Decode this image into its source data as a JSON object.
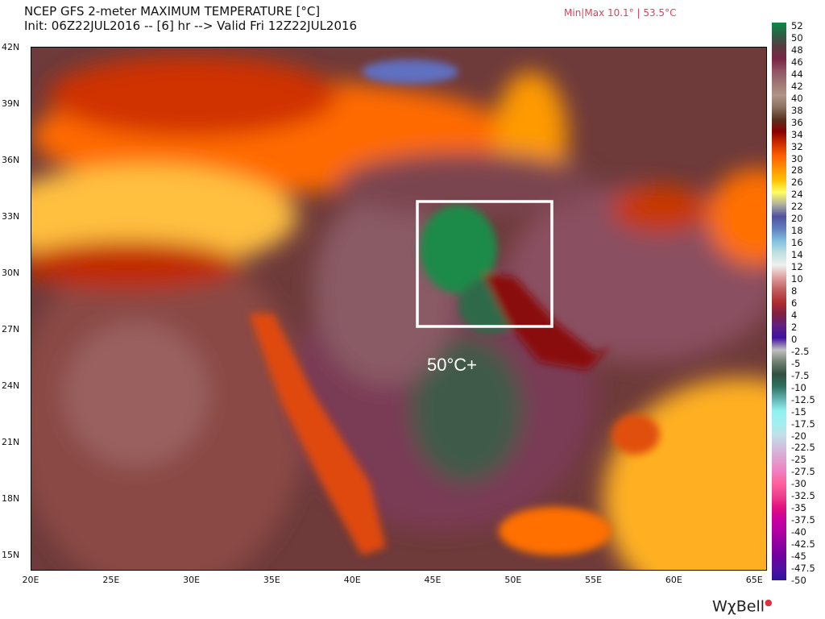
{
  "header": {
    "title": "NCEP GFS 2-meter MAXIMUM TEMPERATURE [°C]",
    "subtitle": "Init: 06Z22JUL2016 -- [6] hr --> Valid Fri 12Z22JUL2016",
    "minmax": "Min|Max 10.1° | 53.5°C"
  },
  "map": {
    "lat_labels": [
      "42N",
      "39N",
      "36N",
      "33N",
      "30N",
      "27N",
      "24N",
      "21N",
      "18N",
      "15N"
    ],
    "lon_labels": [
      "20E",
      "25E",
      "30E",
      "35E",
      "40E",
      "45E",
      "50E",
      "55E",
      "60E",
      "65E"
    ],
    "annotation": "50°C+",
    "highlight_box_color": "#ffffff"
  },
  "colorbar": {
    "labels": [
      "52",
      "50",
      "48",
      "46",
      "44",
      "42",
      "40",
      "38",
      "36",
      "34",
      "32",
      "30",
      "28",
      "26",
      "24",
      "22",
      "20",
      "18",
      "16",
      "14",
      "12",
      "10",
      "8",
      "6",
      "4",
      "2",
      "0",
      "-2.5",
      "-5",
      "-7.5",
      "-10",
      "-12.5",
      "-15",
      "-17.5",
      "-20",
      "-22.5",
      "-25",
      "-27.5",
      "-30",
      "-32.5",
      "-35",
      "-37.5",
      "-40",
      "-42.5",
      "-45",
      "-47.5",
      "-50"
    ],
    "colors": [
      "#0a8a45",
      "#2f5f45",
      "#5a3a40",
      "#7a2545",
      "#905565",
      "#a07575",
      "#b09585",
      "#8a7060",
      "#5a3020",
      "#8a0000",
      "#d03000",
      "#ff6000",
      "#ff9000",
      "#ffc000",
      "#ffff60",
      "#b0b0a0",
      "#5050a0",
      "#6080c0",
      "#80c0e0",
      "#c0e0e0",
      "#f0f0f0",
      "#e0a0a0",
      "#c06060",
      "#b03030",
      "#802040",
      "#602080",
      "#4010a0",
      "#c0c0c0",
      "#708070",
      "#305040",
      "#307060",
      "#60b0b0",
      "#90f0f0",
      "#a0f0f0",
      "#c0e0e8",
      "#d0c0e0",
      "#e0a0d0",
      "#f080c0",
      "#ff60a0",
      "#f04090",
      "#e01080",
      "#c800a0",
      "#b000a0",
      "#9000a0",
      "#7000a0",
      "#5010a0",
      "#3010a0"
    ]
  },
  "logo": "WχBell"
}
